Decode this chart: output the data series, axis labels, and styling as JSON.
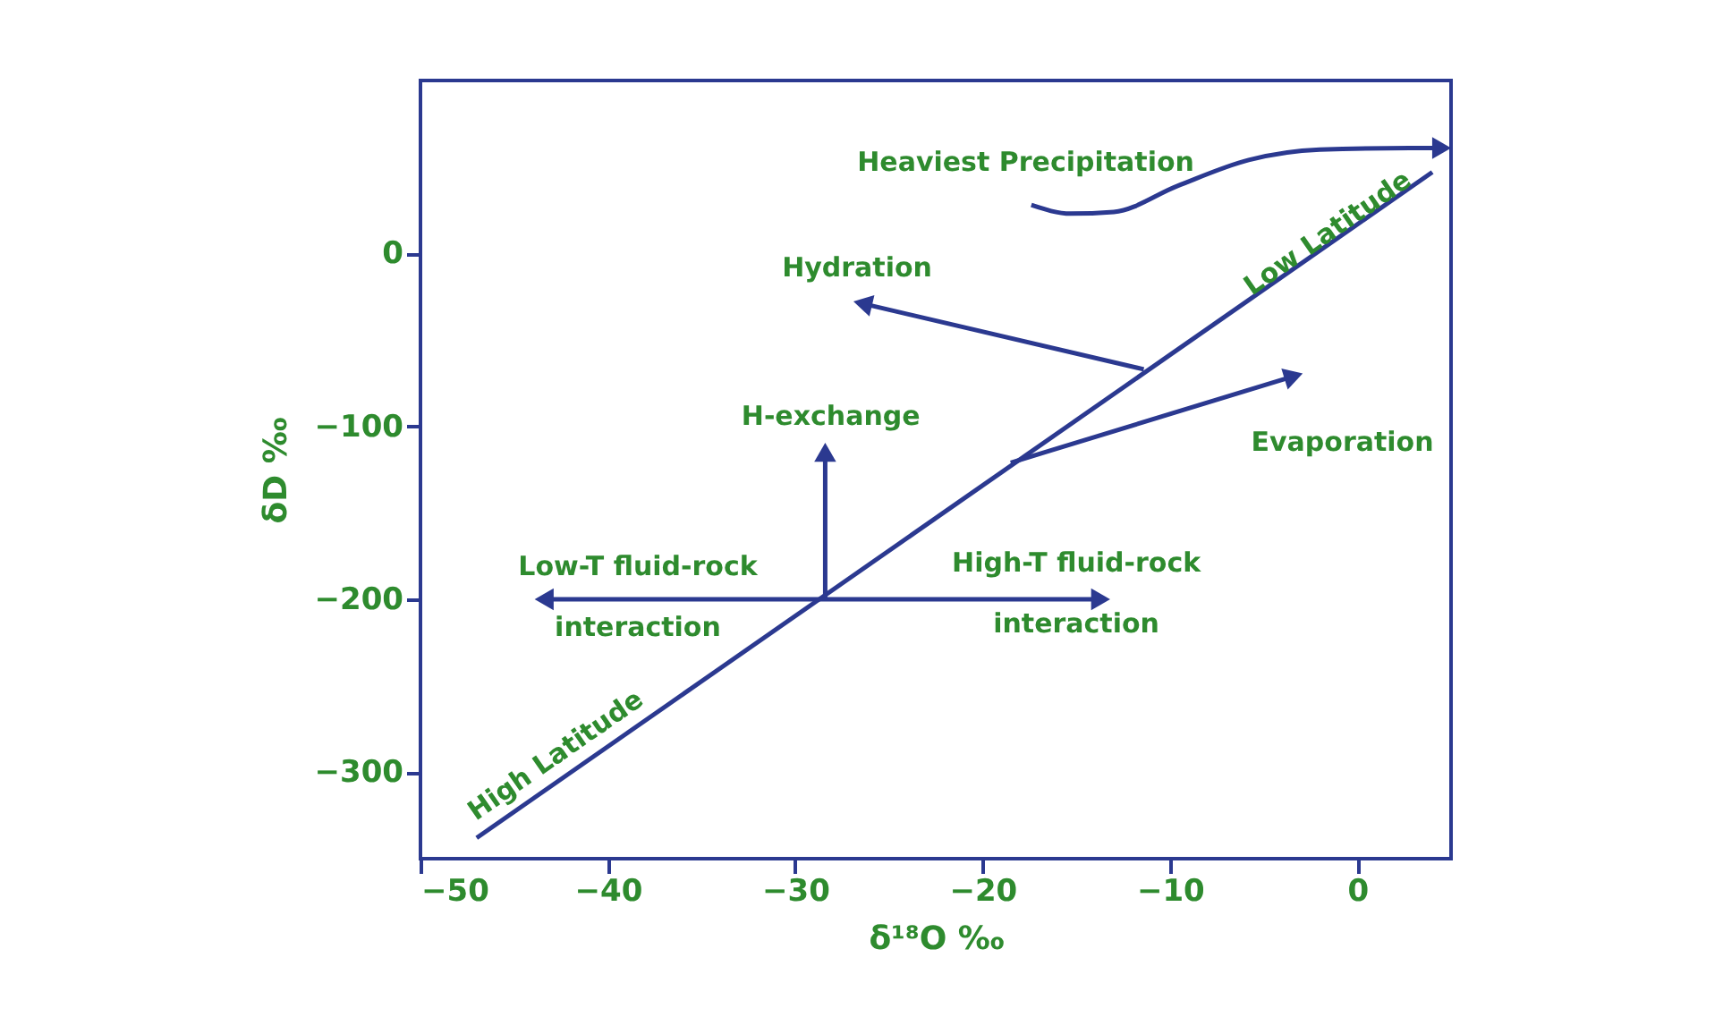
{
  "chart_data": {
    "type": "line",
    "xlabel": "δ¹⁸O ‰",
    "ylabel": "δD ‰",
    "xlim": [
      -50,
      5
    ],
    "ylim": [
      -350,
      100
    ],
    "xticks": [
      -50,
      -40,
      -30,
      -20,
      -10,
      0
    ],
    "yticks": [
      0,
      -100,
      -200,
      -300
    ],
    "grid": false,
    "line_style": "solid",
    "series": [
      {
        "color": "#2b3990",
        "x": [
          -47.0,
          4.0
        ],
        "values": [
          -338,
          47
        ]
      },
      {
        "color": "#2b3990",
        "x": [
          -17.4,
          -15.3,
          -13.0,
          -9.6,
          -5.8,
          -2.0,
          2.8,
          4.5
        ],
        "values": [
          28,
          23,
          24,
          39,
          54,
          60,
          61,
          61
        ]
      },
      {
        "color": "#2b3990",
        "marker": "triangle",
        "x": [
          -11.4,
          -26.4
        ],
        "values": [
          -67,
          -29
        ]
      },
      {
        "color": "#2b3990",
        "marker": "triangle",
        "x": [
          -18.5,
          -3.4
        ],
        "values": [
          -121,
          -71
        ]
      },
      {
        "color": "#2b3990",
        "marker": "triangle",
        "x": [
          -28.4,
          -28.4
        ],
        "values": [
          -200,
          -115
        ]
      },
      {
        "color": "#2b3990",
        "marker": "triangle",
        "x": [
          -43.4,
          -13.7
        ],
        "values": [
          -200,
          -200
        ]
      }
    ],
    "annotations": [
      "Heaviest Precipitation",
      "Hydration",
      "H-exchange",
      "Evaporation",
      "Low-T fluid-rock\ninteraction",
      "High-T fluid-rock\ninteraction",
      "High Latitude",
      {
        "text": "Low Latitude",
        "x": -1.6,
        "y": 12
      }
    ]
  }
}
